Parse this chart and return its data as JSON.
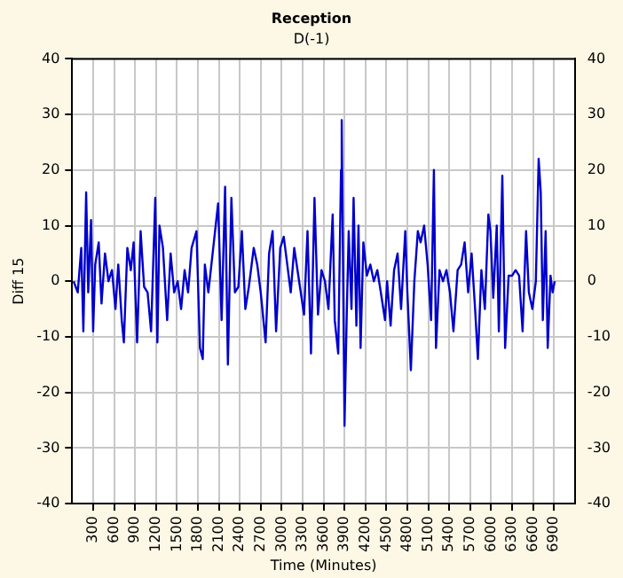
{
  "chart_data": {
    "type": "line",
    "title": "Reception",
    "subtitle": "D(-1)",
    "xlabel": "Time (Minutes)",
    "ylabel": "Diff 15",
    "xlim": [
      0,
      7200
    ],
    "xticks": [
      300,
      600,
      900,
      1200,
      1500,
      1800,
      2100,
      2400,
      2700,
      3000,
      3300,
      3600,
      3900,
      4200,
      4500,
      4800,
      5100,
      5400,
      5700,
      6000,
      6300,
      6600,
      6900
    ],
    "ylim": [
      -40,
      40
    ],
    "yticks": [
      -40,
      -30,
      -20,
      -10,
      0,
      10,
      20,
      30,
      40
    ],
    "y2lim": [
      -40,
      40
    ],
    "y2ticks": [
      -40,
      -30,
      -20,
      -10,
      0,
      10,
      20,
      30,
      40
    ],
    "grid": true,
    "legend": false,
    "marker": "none",
    "line_style": "solid",
    "x": [
      20,
      80,
      130,
      160,
      200,
      230,
      270,
      300,
      330,
      380,
      420,
      470,
      520,
      570,
      620,
      660,
      710,
      740,
      790,
      840,
      880,
      930,
      980,
      1030,
      1080,
      1130,
      1190,
      1220,
      1250,
      1300,
      1360,
      1410,
      1460,
      1510,
      1560,
      1610,
      1660,
      1710,
      1780,
      1830,
      1870,
      1900,
      1950,
      2020,
      2090,
      2140,
      2190,
      2230,
      2280,
      2330,
      2380,
      2430,
      2480,
      2530,
      2600,
      2650,
      2700,
      2770,
      2820,
      2870,
      2920,
      2980,
      3030,
      3080,
      3130,
      3180,
      3250,
      3320,
      3370,
      3420,
      3470,
      3520,
      3570,
      3620,
      3670,
      3730,
      3760,
      3810,
      3850,
      3860,
      3900,
      3930,
      3960,
      4000,
      4030,
      4070,
      4100,
      4130,
      4170,
      4220,
      4270,
      4320,
      4370,
      4420,
      4480,
      4510,
      4560,
      4610,
      4660,
      4710,
      4770,
      4800,
      4850,
      4900,
      4950,
      4990,
      5040,
      5090,
      5140,
      5180,
      5210,
      5260,
      5310,
      5360,
      5410,
      5460,
      5520,
      5570,
      5620,
      5670,
      5720,
      5770,
      5810,
      5860,
      5910,
      5960,
      5990,
      6030,
      6080,
      6110,
      6160,
      6200,
      6250,
      6300,
      6350,
      6400,
      6450,
      6500,
      6540,
      6590,
      6640,
      6680,
      6710,
      6740,
      6780,
      6810,
      6850,
      6880,
      6910
    ],
    "series": [
      {
        "color": "#0000cc",
        "values": [
          0,
          -2,
          6,
          -9,
          16,
          -2,
          11,
          -9,
          3,
          7,
          -4,
          5,
          0,
          2,
          -5,
          3,
          -7,
          -11,
          6,
          2,
          7,
          -11,
          9,
          -1,
          -2,
          -9,
          15,
          -11,
          10,
          6,
          -7,
          5,
          -2,
          0,
          -5,
          2,
          -2,
          6,
          9,
          -12,
          -14,
          3,
          -2,
          6,
          14,
          -7,
          17,
          -15,
          15,
          -2,
          -1,
          9,
          -5,
          -1,
          6,
          3,
          -2,
          -11,
          5,
          9,
          -9,
          6,
          8,
          3,
          -2,
          6,
          0,
          -6,
          9,
          -13,
          15,
          -6,
          2,
          0,
          -5,
          12,
          -7,
          -13,
          20,
          29,
          -26,
          -7,
          9,
          -5,
          15,
          -8,
          10,
          -12,
          7,
          1,
          3,
          0,
          2,
          -2,
          -7,
          0,
          -8,
          2,
          5,
          -5,
          9,
          -2,
          -16,
          0,
          9,
          7,
          10,
          3,
          -7,
          20,
          -12,
          2,
          0,
          2,
          -2,
          -9,
          2,
          3,
          7,
          -2,
          5,
          -5,
          -14,
          2,
          -5,
          12,
          9,
          -3,
          10,
          -9,
          19,
          -12,
          1,
          1,
          2,
          1,
          -9,
          9,
          -2,
          -5,
          0,
          22,
          16,
          -7,
          9,
          -12,
          1,
          -2,
          0
        ]
      }
    ]
  }
}
